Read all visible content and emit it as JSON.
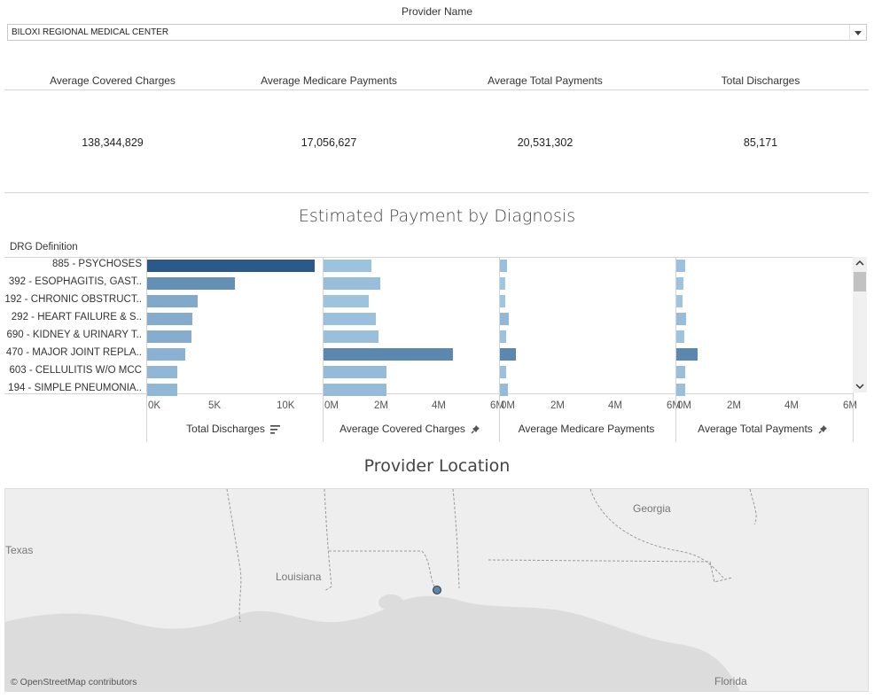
{
  "filter": {
    "label": "Provider Name",
    "selected": "BILOXI REGIONAL MEDICAL CENTER"
  },
  "kpis": [
    {
      "label": "Average Covered Charges",
      "value": "138,344,829"
    },
    {
      "label": "Average Medicare Payments",
      "value": "17,056,627"
    },
    {
      "label": "Average Total Payments",
      "value": "20,531,302"
    },
    {
      "label": "Total Discharges",
      "value": "85,171"
    }
  ],
  "chart": {
    "title": "Estimated Payment by Diagnosis",
    "row_header": "DRG Definition",
    "panels": [
      {
        "title": "Total Discharges",
        "ticks": [
          "0K",
          "5K",
          "10K"
        ]
      },
      {
        "title": "Average Covered Charges",
        "ticks": [
          "0M",
          "2M",
          "4M",
          "6M"
        ]
      },
      {
        "title": "Average Medicare Payments",
        "ticks": [
          "0M",
          "2M",
          "4M",
          "6M"
        ]
      },
      {
        "title": "Average Total Payments",
        "ticks": [
          "0M",
          "2M",
          "4M",
          "6M"
        ]
      }
    ]
  },
  "chart_data": {
    "type": "bar",
    "orientation": "horizontal",
    "categories": [
      "885 - PSYCHOSES",
      "392 - ESOPHAGITIS, GAST..",
      "192 - CHRONIC OBSTRUCT..",
      "292 - HEART FAILURE & S..",
      "690 - KIDNEY & URINARY T..",
      "470 - MAJOR JOINT REPLA..",
      "603 - CELLULITIS W/O MCC",
      "194 - SIMPLE PNEUMONIA.."
    ],
    "series": [
      {
        "name": "Total Discharges",
        "values": [
          12200,
          6400,
          3700,
          3300,
          3200,
          2800,
          2200,
          2200
        ],
        "xlim": [
          0,
          12700
        ]
      },
      {
        "name": "Average Covered Charges",
        "values": [
          1650000,
          1950000,
          1550000,
          1800000,
          1900000,
          4450000,
          2150000,
          2150000
        ],
        "xlim": [
          0,
          6000000
        ]
      },
      {
        "name": "Average Medicare Payments",
        "values": [
          230000,
          170000,
          170000,
          290000,
          200000,
          550000,
          220000,
          270000
        ],
        "xlim": [
          0,
          6000000
        ]
      },
      {
        "name": "Average Total Payments",
        "values": [
          290000,
          230000,
          220000,
          340000,
          260000,
          740000,
          310000,
          310000
        ],
        "xlim": [
          0,
          6000000
        ]
      }
    ],
    "colors": {
      "low": "#a6cbe6",
      "high": "#2b5a8a"
    }
  },
  "map": {
    "title": "Provider Location",
    "labels": [
      "Texas",
      "Louisiana",
      "Georgia",
      "Florida"
    ],
    "attribution": "© OpenStreetMap contributors",
    "marker_color": "#5b86ad"
  },
  "icons": {
    "sort": "sort-icon",
    "pin": "pin-icon",
    "dropdown": "chevron-down-icon"
  }
}
